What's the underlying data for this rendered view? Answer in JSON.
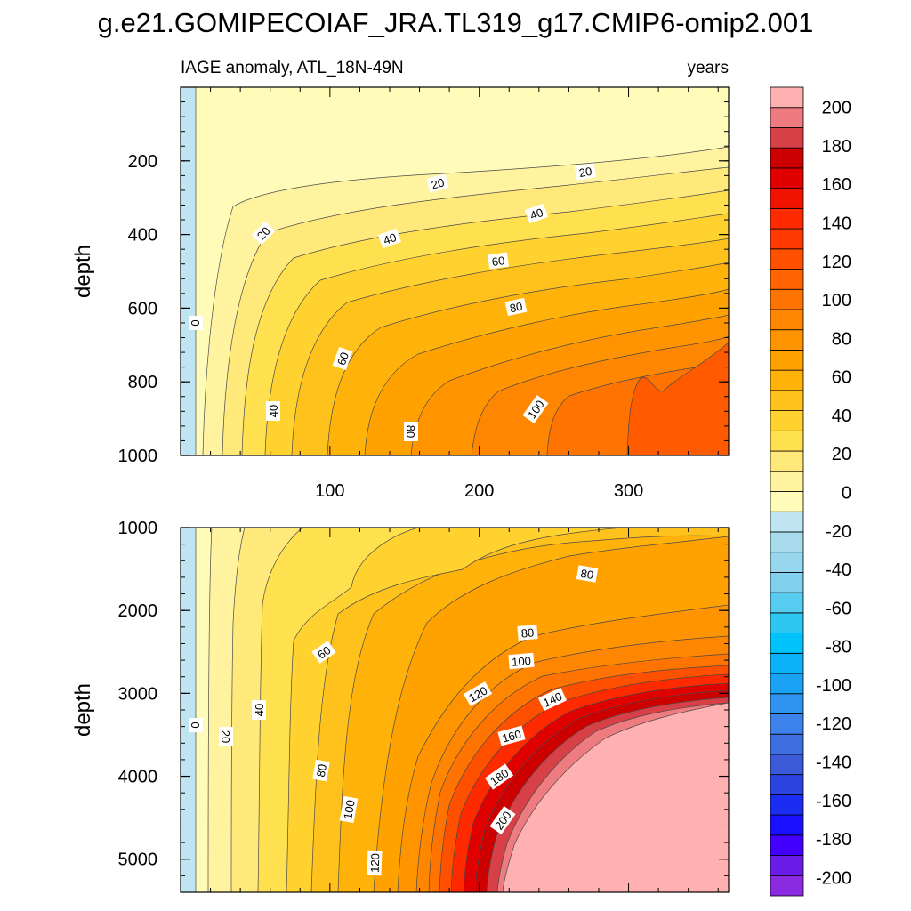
{
  "chart_data": {
    "type": "contour",
    "title": "g.e21.GOMIPECOIAF_JRA.TL319_g17.CMIP6-omip2.001",
    "left_subtitle": "IAGE anomaly, ATL_18N-49N",
    "right_subtitle": "years",
    "xlabel": "",
    "x_ticks": [
      "100",
      "200",
      "300"
    ],
    "xlim": [
      0,
      367
    ],
    "panels": [
      {
        "name": "upper",
        "ylabel": "depth",
        "ylim": [
          0,
          1000
        ],
        "y_ticks": [
          "200",
          "400",
          "600",
          "800",
          "1000"
        ],
        "contour_labels": [
          "0",
          "20",
          "20",
          "20",
          "40",
          "40",
          "40",
          "60",
          "60",
          "80",
          "80",
          "100"
        ]
      },
      {
        "name": "lower",
        "ylabel": "depth",
        "ylim": [
          1000,
          5400
        ],
        "y_ticks": [
          "1000",
          "2000",
          "3000",
          "4000",
          "5000"
        ],
        "contour_labels": [
          "0",
          "20",
          "40",
          "60",
          "80",
          "80",
          "80",
          "100",
          "100",
          "120",
          "120",
          "140",
          "160",
          "180",
          "200"
        ]
      }
    ],
    "colorbar": {
      "labels": [
        "200",
        "180",
        "160",
        "140",
        "120",
        "100",
        "80",
        "60",
        "40",
        "20",
        "0",
        "-20",
        "-40",
        "-60",
        "-80",
        "-100",
        "-120",
        "-140",
        "-160",
        "-180",
        "-200"
      ],
      "levels_min": -210,
      "levels_max": 210,
      "interval": 10,
      "colors": [
        "#8a2be2",
        "#6a1de8",
        "#4400ff",
        "#1a10ff",
        "#1a2df0",
        "#2b43e0",
        "#3a5ad8",
        "#3f6ee0",
        "#3c82ea",
        "#2f93f0",
        "#1aa3f5",
        "#0bb2f8",
        "#00c3fb",
        "#2dc8f2",
        "#58ccf0",
        "#80d0ee",
        "#98d6ee",
        "#a8dced",
        "#bfe4f2",
        "#fffbb8",
        "#fff3a0",
        "#ffe97a",
        "#ffe04e",
        "#ffd230",
        "#ffc21c",
        "#ffb20a",
        "#ffa200",
        "#ff9400",
        "#ff8600",
        "#ff7400",
        "#ff6400",
        "#ff5000",
        "#ff3a00",
        "#ff2a00",
        "#f01400",
        "#e00000",
        "#cc0000",
        "#d84048",
        "#ee7b80",
        "#ffb0b0"
      ]
    }
  }
}
